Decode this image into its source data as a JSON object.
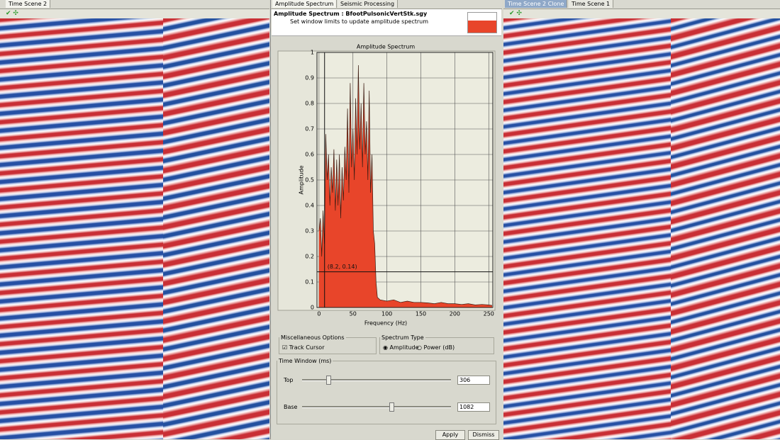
{
  "left_panel": {
    "tab": "Time Scene 2"
  },
  "middle_panel": {
    "tabs": [
      "Amplitude Spectrum",
      "Seismic Processing"
    ],
    "header": {
      "title": "Amplitude Spectrum : BfootPulsonicVertStk.sgy",
      "subtitle": "Set window limits to update amplitude spectrum"
    },
    "misc_options": {
      "title": "Miscellaneous Options",
      "track_cursor": "Track Cursor"
    },
    "spectrum_type": {
      "title": "Spectrum Type",
      "options": [
        "Amplitude",
        "Power (dB)"
      ]
    },
    "time_window": {
      "title": "Time Window (ms)",
      "top_label": "Top",
      "top_value": "306",
      "base_label": "Base",
      "base_value": "1082"
    },
    "buttons": [
      "Apply",
      "Dismiss"
    ]
  },
  "right_panel": {
    "tabs": [
      "Time Scene 2 Clone",
      "Time Scene 1"
    ]
  },
  "chart_data": {
    "type": "area",
    "title": "Amplitude Spectrum",
    "x_label": "Frequency (Hz)",
    "y_label": "Amplitude",
    "color": "#e8452a",
    "x": [
      0,
      2,
      4,
      6,
      8,
      10,
      12,
      14,
      16,
      18,
      20,
      22,
      24,
      26,
      28,
      30,
      32,
      34,
      36,
      38,
      40,
      42,
      44,
      46,
      48,
      50,
      52,
      54,
      56,
      58,
      60,
      62,
      64,
      66,
      68,
      70,
      72,
      74,
      76,
      78,
      80,
      82,
      84,
      86,
      90,
      100,
      110,
      120,
      130,
      140,
      150,
      160,
      170,
      180,
      190,
      200,
      210,
      220,
      230,
      240,
      250,
      255
    ],
    "values": [
      0.3,
      0.35,
      0.2,
      0.38,
      0.25,
      0.68,
      0.5,
      0.6,
      0.4,
      0.55,
      0.45,
      0.62,
      0.38,
      0.58,
      0.4,
      0.6,
      0.35,
      0.55,
      0.42,
      0.63,
      0.5,
      0.78,
      0.45,
      0.88,
      0.55,
      0.7,
      0.5,
      0.82,
      0.6,
      0.95,
      0.62,
      0.8,
      0.55,
      0.88,
      0.6,
      0.73,
      0.5,
      0.85,
      0.45,
      0.6,
      0.3,
      0.25,
      0.1,
      0.04,
      0.03,
      0.025,
      0.03,
      0.02,
      0.025,
      0.02,
      0.02,
      0.018,
      0.015,
      0.02,
      0.015,
      0.015,
      0.012,
      0.015,
      0.01,
      0.012,
      0.01,
      0.008
    ],
    "xlim": [
      -3,
      256
    ],
    "ylim": [
      0,
      1
    ],
    "xticks": [
      0,
      50,
      100,
      150,
      200,
      250
    ],
    "yticks": [
      0,
      0.1,
      0.2,
      0.3,
      0.4,
      0.5,
      0.6,
      0.7,
      0.8,
      0.9,
      1
    ],
    "grid": true,
    "cursor": {
      "x": 8.2,
      "y": 0.14,
      "label": "(8.2, 0.14)"
    }
  }
}
